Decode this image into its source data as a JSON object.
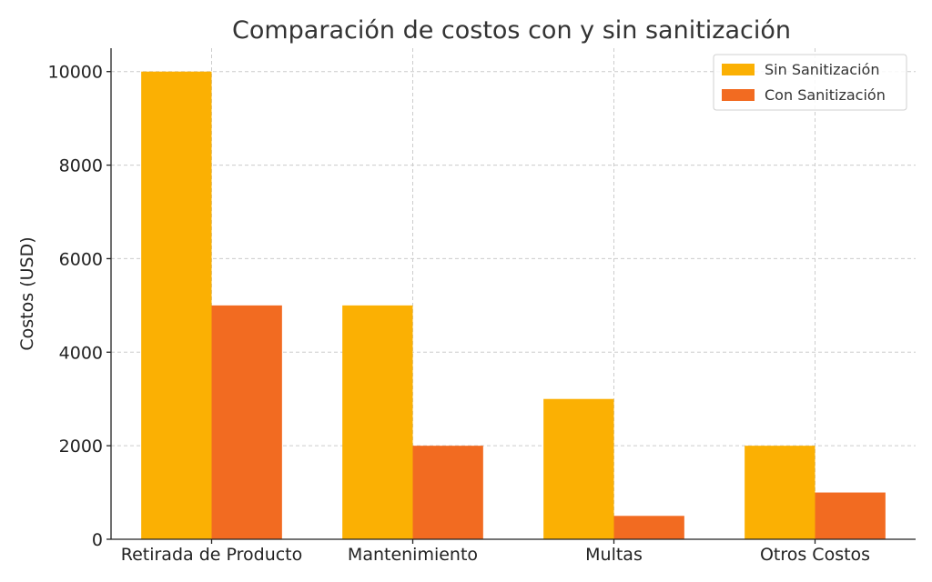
{
  "chart_data": {
    "type": "bar",
    "title": "Comparación de costos con y sin sanitización",
    "xlabel": "",
    "ylabel": "Costos (USD)",
    "categories": [
      "Retirada de Producto",
      "Mantenimiento",
      "Multas",
      "Otros Costos"
    ],
    "series": [
      {
        "name": "Sin Sanitización",
        "values": [
          10000,
          5000,
          3000,
          2000
        ],
        "color": "#FBB003"
      },
      {
        "name": "Con Sanitización",
        "values": [
          5000,
          2000,
          500,
          1000
        ],
        "color": "#F26B21"
      }
    ],
    "ylim": [
      0,
      10500
    ],
    "yticks": [
      0,
      2000,
      4000,
      6000,
      8000,
      10000
    ],
    "grid": true,
    "legend_position": "top-right"
  }
}
